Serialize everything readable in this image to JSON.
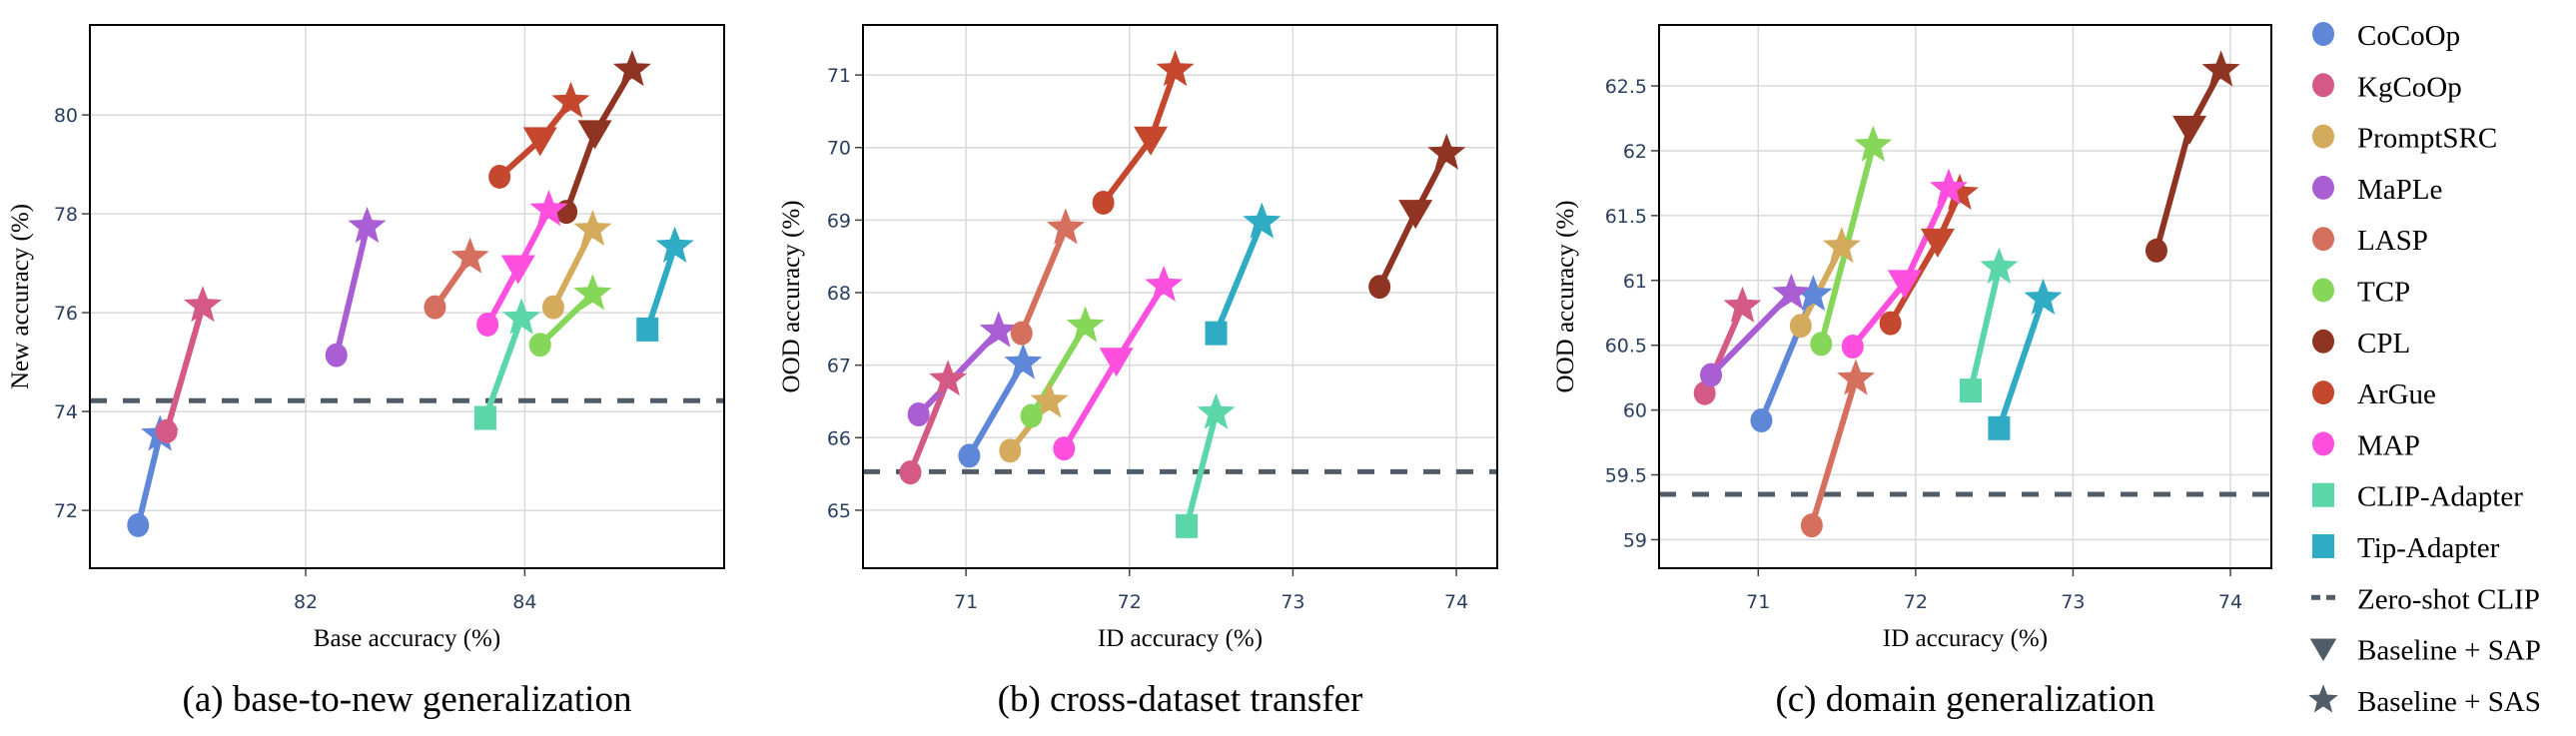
{
  "legend": {
    "position": "right",
    "items": [
      {
        "label": "CoCoOp",
        "marker": "circle",
        "color": "#5f87d8"
      },
      {
        "label": "KgCoOp",
        "marker": "circle",
        "color": "#d45a85"
      },
      {
        "label": "PromptSRC",
        "marker": "circle",
        "color": "#d4aa5c"
      },
      {
        "label": "MaPLe",
        "marker": "circle",
        "color": "#a95ed4"
      },
      {
        "label": "LASP",
        "marker": "circle",
        "color": "#d6705e"
      },
      {
        "label": "TCP",
        "marker": "circle",
        "color": "#86d65a"
      },
      {
        "label": "CPL",
        "marker": "circle",
        "color": "#8f3322"
      },
      {
        "label": "ArGue",
        "marker": "circle",
        "color": "#c4472e"
      },
      {
        "label": "MAP",
        "marker": "circle",
        "color": "#ff4fdf"
      },
      {
        "label": "CLIP-Adapter",
        "marker": "square",
        "color": "#5ad6a8"
      },
      {
        "label": "Tip-Adapter",
        "marker": "square",
        "color": "#2fabc4"
      },
      {
        "label": "Zero-shot CLIP",
        "marker": "dash",
        "color": "#505d68"
      },
      {
        "label": "Baseline + SAP",
        "marker": "triangle-down",
        "color": "#505d68"
      },
      {
        "label": "Baseline + SAS",
        "marker": "star",
        "color": "#505d68"
      }
    ]
  },
  "chart_data": [
    {
      "type": "scatter",
      "caption": "(a) base-to-new generalization",
      "xlabel": "Base accuracy (%)",
      "ylabel": "New accuracy (%)",
      "xlim": [
        80.03,
        85.82
      ],
      "ylim": [
        70.83,
        81.82
      ],
      "xticks": [
        "82",
        "84"
      ],
      "yticks": [
        "72",
        "74",
        "76",
        "78",
        "80"
      ],
      "grid": true,
      "zero_shot": 74.22,
      "series": [
        {
          "name": "CoCoOp",
          "baseline": [
            80.47,
            71.7
          ],
          "sap": null,
          "sas": [
            80.67,
            73.53
          ]
        },
        {
          "name": "KgCoOp",
          "baseline": [
            80.73,
            73.6
          ],
          "sap": null,
          "sas": [
            81.06,
            76.14
          ]
        },
        {
          "name": "MaPLe",
          "baseline": [
            82.28,
            75.14
          ],
          "sap": null,
          "sas": [
            82.56,
            77.74
          ]
        },
        {
          "name": "LASP",
          "baseline": [
            83.18,
            76.11
          ],
          "sap": null,
          "sas": [
            83.5,
            77.12
          ]
        },
        {
          "name": "ArGue",
          "baseline": [
            83.77,
            78.75
          ],
          "sap": [
            84.14,
            79.49
          ],
          "sas": [
            84.42,
            80.27
          ]
        },
        {
          "name": "CPL",
          "baseline": [
            84.38,
            78.04
          ],
          "sap": [
            84.64,
            79.63
          ],
          "sas": [
            84.98,
            80.91
          ]
        },
        {
          "name": "MAP",
          "baseline": [
            83.66,
            75.76
          ],
          "sap": [
            83.94,
            76.9
          ],
          "sas": [
            84.22,
            78.08
          ]
        },
        {
          "name": "PromptSRC",
          "baseline": [
            84.26,
            76.11
          ],
          "sap": null,
          "sas": [
            84.62,
            77.68
          ]
        },
        {
          "name": "TCP",
          "baseline": [
            84.14,
            75.35
          ],
          "sap": null,
          "sas": [
            84.62,
            76.38
          ]
        },
        {
          "name": "CLIP-Adapter",
          "baseline": [
            83.64,
            73.87
          ],
          "sap": null,
          "sas": [
            83.97,
            75.89
          ]
        },
        {
          "name": "Tip-Adapter",
          "baseline": [
            85.12,
            75.66
          ],
          "sap": null,
          "sas": [
            85.37,
            77.34
          ]
        }
      ]
    },
    {
      "type": "scatter",
      "caption": "(b) cross-dataset transfer",
      "xlabel": "ID accuracy (%)",
      "ylabel": "OOD accuracy (%)",
      "xlim": [
        70.37,
        74.25
      ],
      "ylim": [
        64.2,
        71.69
      ],
      "xticks": [
        "71",
        "72",
        "73",
        "74"
      ],
      "yticks": [
        "65",
        "66",
        "67",
        "68",
        "69",
        "70",
        "71"
      ],
      "grid": true,
      "zero_shot": 65.53,
      "series": [
        {
          "name": "CoCoOp",
          "baseline": [
            71.02,
            65.75
          ],
          "sap": null,
          "sas": [
            71.35,
            67.03
          ]
        },
        {
          "name": "KgCoOp",
          "baseline": [
            70.66,
            65.52
          ],
          "sap": null,
          "sas": [
            70.89,
            66.8
          ]
        },
        {
          "name": "MaPLe",
          "baseline": [
            70.71,
            66.32
          ],
          "sap": null,
          "sas": [
            71.2,
            67.47
          ]
        },
        {
          "name": "LASP",
          "baseline": [
            71.34,
            67.44
          ],
          "sap": null,
          "sas": [
            71.61,
            68.89
          ]
        },
        {
          "name": "ArGue",
          "baseline": [
            71.84,
            69.24
          ],
          "sap": [
            72.13,
            70.11
          ],
          "sas": [
            72.28,
            71.07
          ]
        },
        {
          "name": "CPL",
          "baseline": [
            73.53,
            68.08
          ],
          "sap": [
            73.75,
            69.1
          ],
          "sas": [
            73.94,
            69.92
          ]
        },
        {
          "name": "MAP",
          "baseline": [
            71.6,
            65.85
          ],
          "sap": [
            71.92,
            67.06
          ],
          "sas": [
            72.21,
            68.1
          ]
        },
        {
          "name": "PromptSRC",
          "baseline": [
            71.27,
            65.82
          ],
          "sap": null,
          "sas": [
            71.51,
            66.5
          ]
        },
        {
          "name": "TCP",
          "baseline": [
            71.4,
            66.3
          ],
          "sap": null,
          "sas": [
            71.73,
            67.54
          ]
        },
        {
          "name": "CLIP-Adapter",
          "baseline": [
            72.35,
            64.78
          ],
          "sap": null,
          "sas": [
            72.53,
            66.34
          ]
        },
        {
          "name": "Tip-Adapter",
          "baseline": [
            72.53,
            67.44
          ],
          "sap": null,
          "sas": [
            72.81,
            68.97
          ]
        }
      ]
    },
    {
      "type": "scatter",
      "caption": "(c) domain generalization",
      "xlabel": "ID accuracy (%)",
      "ylabel": "OOD accuracy (%)",
      "xlim": [
        70.37,
        74.26
      ],
      "ylim": [
        58.78,
        62.97
      ],
      "xticks": [
        "71",
        "72",
        "73",
        "74"
      ],
      "yticks": [
        "59",
        "59.5",
        "60",
        "60.5",
        "61",
        "61.5",
        "62",
        "62.5"
      ],
      "grid": true,
      "zero_shot": 59.35,
      "series": [
        {
          "name": "CoCoOp",
          "baseline": [
            71.02,
            59.92
          ],
          "sap": null,
          "sas": [
            71.35,
            60.89
          ]
        },
        {
          "name": "KgCoOp",
          "baseline": [
            70.66,
            60.13
          ],
          "sap": null,
          "sas": [
            70.9,
            60.8
          ]
        },
        {
          "name": "MaPLe",
          "baseline": [
            70.7,
            60.27
          ],
          "sap": null,
          "sas": [
            71.21,
            60.9
          ]
        },
        {
          "name": "LASP",
          "baseline": [
            71.34,
            59.11
          ],
          "sap": null,
          "sas": [
            71.62,
            60.24
          ]
        },
        {
          "name": "ArGue",
          "baseline": [
            71.84,
            60.67
          ],
          "sap": [
            72.14,
            61.3
          ],
          "sas": [
            72.28,
            61.67
          ]
        },
        {
          "name": "CPL",
          "baseline": [
            73.53,
            61.23
          ],
          "sap": [
            73.74,
            62.17
          ],
          "sas": [
            73.94,
            62.62
          ]
        },
        {
          "name": "MAP",
          "baseline": [
            71.6,
            60.49
          ],
          "sap": [
            71.93,
            60.98
          ],
          "sas": [
            72.21,
            61.71
          ]
        },
        {
          "name": "PromptSRC",
          "baseline": [
            71.27,
            60.65
          ],
          "sap": null,
          "sas": [
            71.53,
            61.26
          ]
        },
        {
          "name": "TCP",
          "baseline": [
            71.4,
            60.51
          ],
          "sap": null,
          "sas": [
            71.73,
            62.04
          ]
        },
        {
          "name": "CLIP-Adapter",
          "baseline": [
            72.35,
            60.15
          ],
          "sap": null,
          "sas": [
            72.53,
            61.1
          ]
        },
        {
          "name": "Tip-Adapter",
          "baseline": [
            72.53,
            59.86
          ],
          "sap": null,
          "sas": [
            72.81,
            60.86
          ]
        }
      ]
    }
  ]
}
